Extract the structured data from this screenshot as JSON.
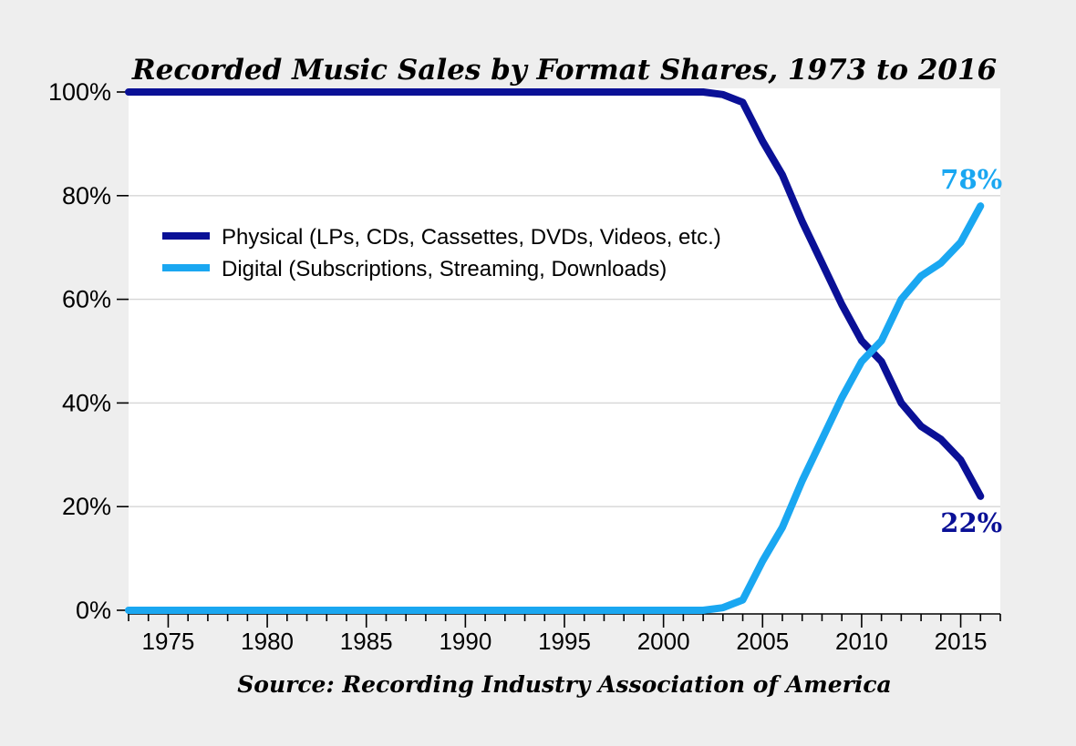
{
  "title": "Recorded Music Sales by Format Shares, 1973 to 2016",
  "source": "Source: Recording Industry Association of America",
  "chart_data": {
    "type": "line",
    "title": "Recorded Music Sales by Format Shares, 1973 to 2016",
    "xlabel": "",
    "ylabel": "",
    "xlim": [
      1973,
      2017
    ],
    "ylim": [
      0,
      100
    ],
    "grid": "horizontal",
    "legend_position": "inside-upper-left",
    "yticks": [
      0,
      20,
      40,
      60,
      80,
      100
    ],
    "ytick_suffix": "%",
    "xticks_major": [
      1975,
      1980,
      1985,
      1990,
      1995,
      2000,
      2005,
      2010,
      2015
    ],
    "xticks_minor_step": 1,
    "x": [
      1973,
      1974,
      1975,
      1976,
      1977,
      1978,
      1979,
      1980,
      1981,
      1982,
      1983,
      1984,
      1985,
      1986,
      1987,
      1988,
      1989,
      1990,
      1991,
      1992,
      1993,
      1994,
      1995,
      1996,
      1997,
      1998,
      1999,
      2000,
      2001,
      2002,
      2003,
      2004,
      2005,
      2006,
      2007,
      2008,
      2009,
      2010,
      2011,
      2012,
      2013,
      2014,
      2015,
      2016
    ],
    "series": [
      {
        "name": "Physical (LPs, CDs, Cassettes, DVDs, Videos, etc.)",
        "color": "#0a1096",
        "values": [
          100,
          100,
          100,
          100,
          100,
          100,
          100,
          100,
          100,
          100,
          100,
          100,
          100,
          100,
          100,
          100,
          100,
          100,
          100,
          100,
          100,
          100,
          100,
          100,
          100,
          100,
          100,
          100,
          100,
          100,
          99.5,
          98,
          90.5,
          84,
          75,
          67,
          59,
          52,
          48,
          40,
          35.5,
          33,
          29,
          22
        ]
      },
      {
        "name": "Digital (Subscriptions, Streaming, Downloads)",
        "color": "#1aa7f1",
        "values": [
          0,
          0,
          0,
          0,
          0,
          0,
          0,
          0,
          0,
          0,
          0,
          0,
          0,
          0,
          0,
          0,
          0,
          0,
          0,
          0,
          0,
          0,
          0,
          0,
          0,
          0,
          0,
          0,
          0,
          0,
          0.5,
          2,
          9.5,
          16,
          25,
          33,
          41,
          48,
          52,
          60,
          64.5,
          67,
          71,
          78
        ]
      }
    ],
    "annotations": [
      {
        "text": "78%",
        "x": 2016,
        "y": 78,
        "color": "#1aa7f1"
      },
      {
        "text": "22%",
        "x": 2016,
        "y": 22,
        "color": "#0a1096"
      }
    ]
  },
  "colors": {
    "background": "#eeeeee",
    "plot_background": "#ffffff",
    "gridline": "#d6d6d6",
    "axis": "#000000",
    "physical_line": "#0a1096",
    "digital_line": "#1aa7f1"
  }
}
